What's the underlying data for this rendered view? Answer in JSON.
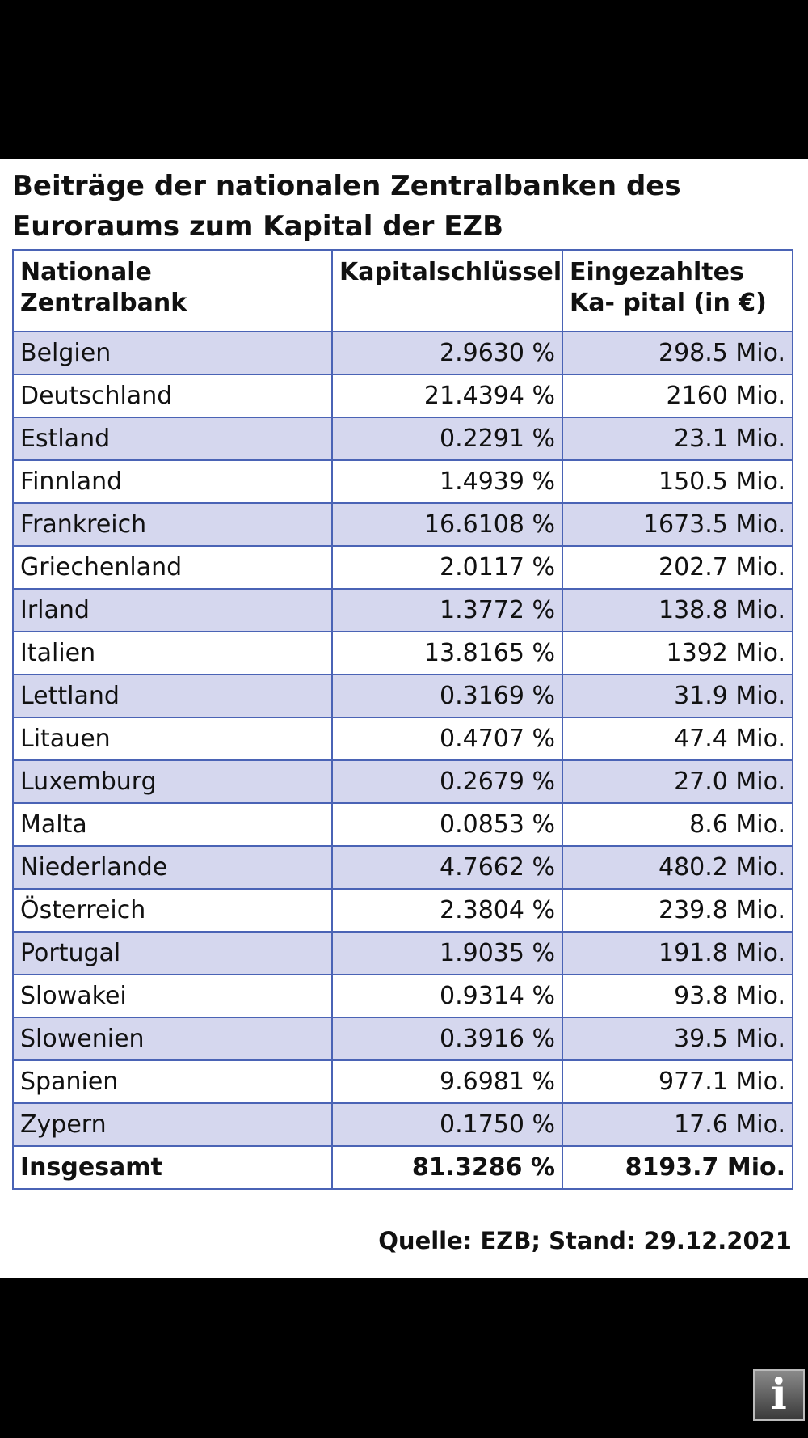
{
  "title": "Beiträge der nationalen Zentralbanken des Euroraums zum Kapital der EZB",
  "columns": [
    "Nationale Zentralbank",
    "Kapitalschlüssel",
    "Eingezahltes Ka- pital (in €)"
  ],
  "rows": [
    {
      "bank": "Belgien",
      "key": "2.9630 %",
      "capital": "298.5 Mio."
    },
    {
      "bank": "Deutschland",
      "key": "21.4394 %",
      "capital": "2160 Mio."
    },
    {
      "bank": "Estland",
      "key": "0.2291 %",
      "capital": "23.1 Mio."
    },
    {
      "bank": "Finnland",
      "key": "1.4939 %",
      "capital": "150.5 Mio."
    },
    {
      "bank": "Frankreich",
      "key": "16.6108 %",
      "capital": "1673.5 Mio."
    },
    {
      "bank": "Griechenland",
      "key": "2.0117 %",
      "capital": "202.7 Mio."
    },
    {
      "bank": "Irland",
      "key": "1.3772 %",
      "capital": "138.8 Mio."
    },
    {
      "bank": "Italien",
      "key": "13.8165 %",
      "capital": "1392 Mio."
    },
    {
      "bank": "Lettland",
      "key": "0.3169 %",
      "capital": "31.9 Mio."
    },
    {
      "bank": "Litauen",
      "key": "0.4707 %",
      "capital": "47.4 Mio."
    },
    {
      "bank": "Luxemburg",
      "key": "0.2679 %",
      "capital": "27.0 Mio."
    },
    {
      "bank": "Malta",
      "key": "0.0853 %",
      "capital": "8.6 Mio."
    },
    {
      "bank": "Niederlande",
      "key": "4.7662 %",
      "capital": "480.2 Mio."
    },
    {
      "bank": "Österreich",
      "key": "2.3804 %",
      "capital": "239.8 Mio."
    },
    {
      "bank": "Portugal",
      "key": "1.9035 %",
      "capital": "191.8 Mio."
    },
    {
      "bank": "Slowakei",
      "key": "0.9314 %",
      "capital": "93.8 Mio."
    },
    {
      "bank": "Slowenien",
      "key": "0.3916 %",
      "capital": "39.5 Mio."
    },
    {
      "bank": "Spanien",
      "key": "9.6981 %",
      "capital": "977.1 Mio."
    },
    {
      "bank": "Zypern",
      "key": "0.1750 %",
      "capital": "17.6 Mio."
    }
  ],
  "total": {
    "label": "Insgesamt",
    "key": "81.3286 %",
    "capital": "8193.7 Mio."
  },
  "source": "Quelle: EZB; Stand: 29.12.2021",
  "info_button": {
    "icon": "info-icon",
    "glyph": "i"
  },
  "colors": {
    "border": "#4a63b5",
    "stripe": "#d5d7ee",
    "background": "#000000"
  }
}
